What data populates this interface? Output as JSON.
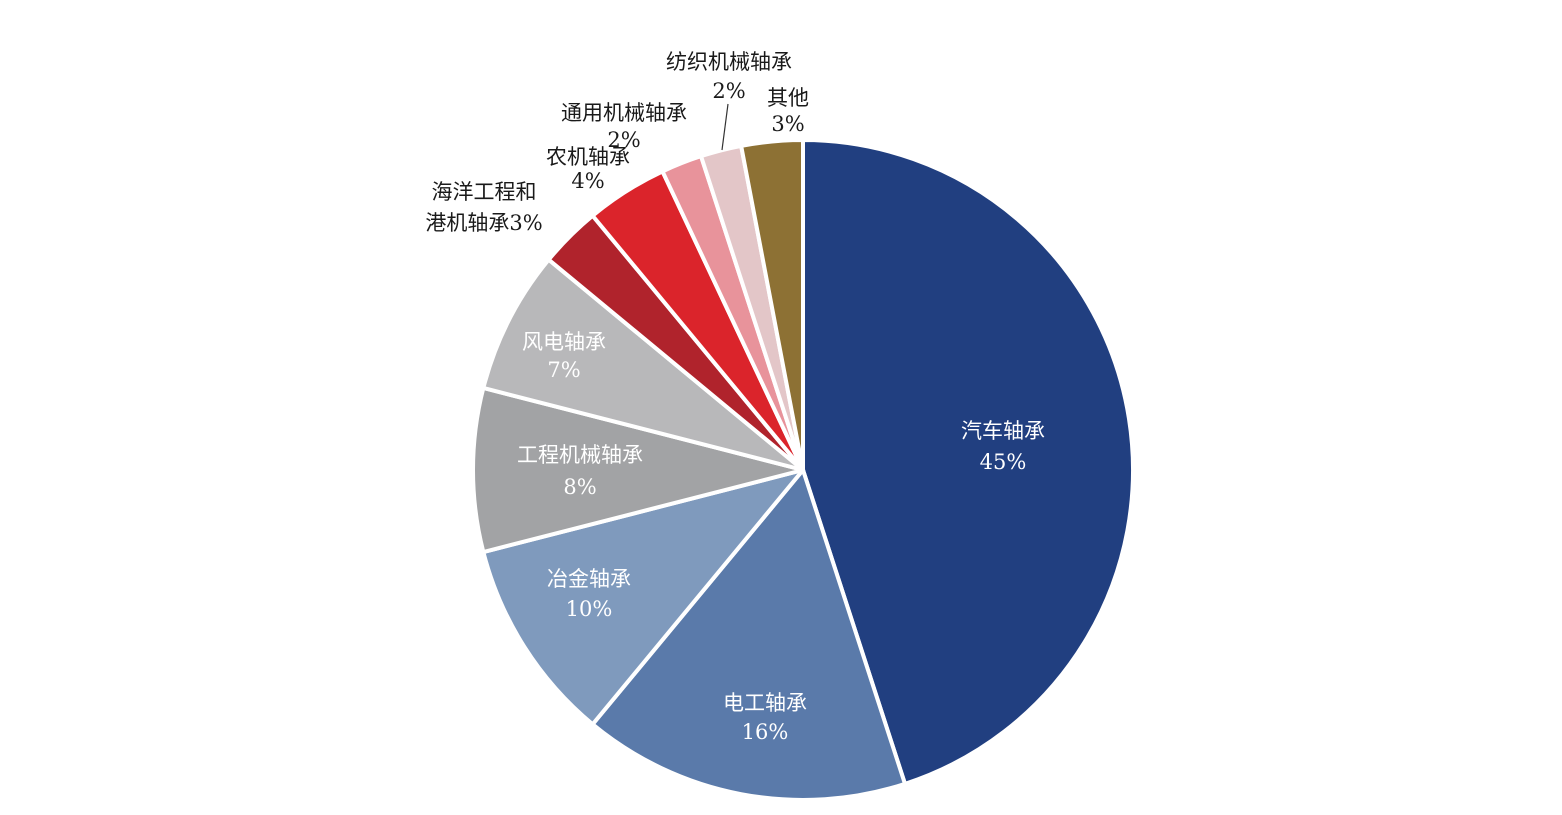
{
  "chart_data": {
    "type": "pie",
    "title": "",
    "start_angle_deg": 0,
    "direction": "clockwise",
    "slice_border_color": "#ffffff",
    "slices": [
      {
        "label": "汽车轴承",
        "value": 45,
        "value_label": "45%",
        "color": "#213F80",
        "label_color": "#ffffff",
        "label_placement": "inside"
      },
      {
        "label": "电工轴承",
        "value": 16,
        "value_label": "16%",
        "color": "#5A7AAA",
        "label_color": "#ffffff",
        "label_placement": "inside"
      },
      {
        "label": "冶金轴承",
        "value": 10,
        "value_label": "10%",
        "color": "#7F9ABD",
        "label_color": "#ffffff",
        "label_placement": "inside"
      },
      {
        "label": "工程机械轴承",
        "value": 8,
        "value_label": "8%",
        "color": "#A2A3A5",
        "label_color": "#ffffff",
        "label_placement": "inside"
      },
      {
        "label": "风电轴承",
        "value": 7,
        "value_label": "7%",
        "color": "#B8B8BA",
        "label_color": "#ffffff",
        "label_placement": "inside"
      },
      {
        "label": "海洋工程和港机轴承",
        "label_lines": [
          "海洋工程和",
          "港机轴承3%"
        ],
        "value": 3,
        "value_label": "3%",
        "color": "#B0232C",
        "label_color": "#1a1a1a",
        "label_placement": "outside"
      },
      {
        "label": "农机轴承",
        "value": 4,
        "value_label": "4%",
        "color": "#DB242B",
        "label_color": "#1a1a1a",
        "label_placement": "outside"
      },
      {
        "label": "通用机械轴承",
        "value": 2,
        "value_label": "2%",
        "color": "#E8939B",
        "label_color": "#1a1a1a",
        "label_placement": "outside"
      },
      {
        "label": "纺织机械轴承",
        "value": 2,
        "value_label": "2%",
        "color": "#E3C6C8",
        "label_color": "#1a1a1a",
        "label_placement": "outside",
        "leader_line": true
      },
      {
        "label": "其他",
        "value": 3,
        "value_label": "3%",
        "color": "#8D7134",
        "label_color": "#1a1a1a",
        "label_placement": "outside"
      }
    ]
  }
}
